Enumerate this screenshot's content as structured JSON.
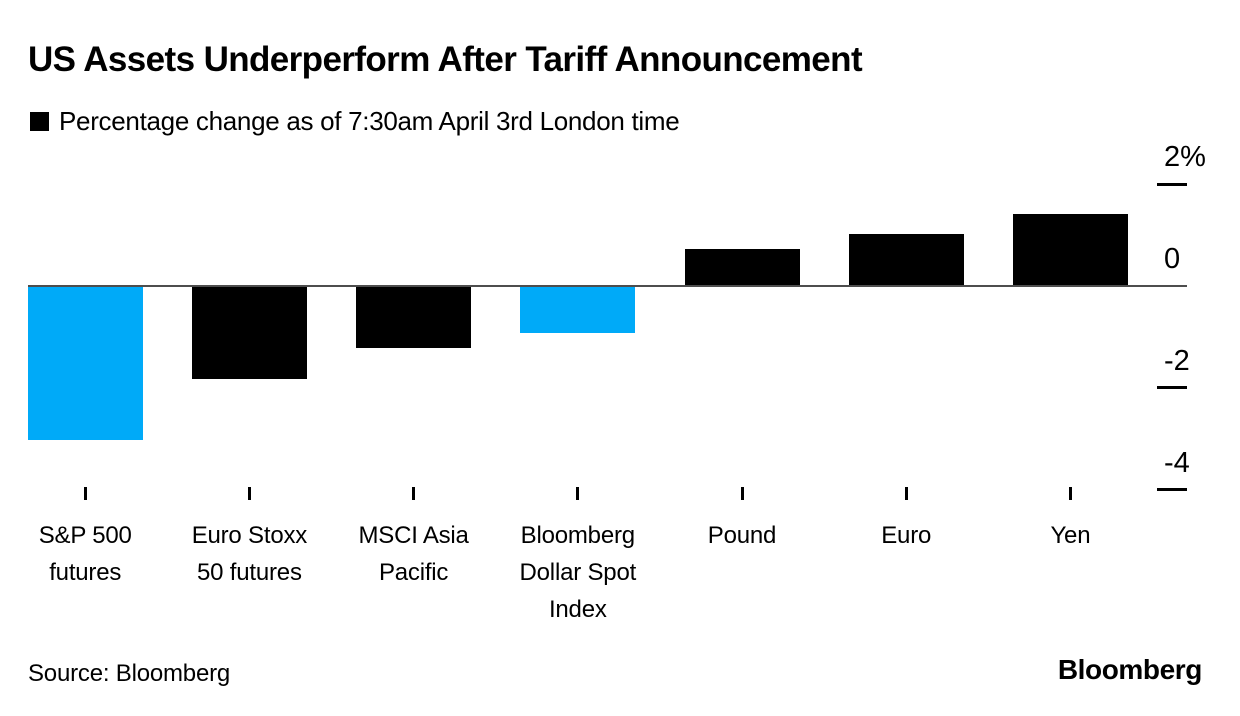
{
  "title": "US Assets Underperform After Tariff Announcement",
  "legend": {
    "label": "Percentage change as of 7:30am April 3rd London time",
    "swatch_color": "#000000"
  },
  "source_note": "Source: Bloomberg",
  "brand_logo": "Bloomberg",
  "colors": {
    "bar_black": "#000000",
    "bar_blue": "#00aaf8",
    "axis_line": "#4d4d4d",
    "text": "#000000",
    "background": "#ffffff"
  },
  "chart_data": {
    "type": "bar",
    "title": "US Assets Underperform After Tariff Announcement",
    "subtitle_legend": "Percentage change as of 7:30am April 3rd London time",
    "categories": [
      "S&P 500 futures",
      "Euro Stoxx 50 futures",
      "MSCI Asia Pacific",
      "Bloomberg Dollar Spot Index",
      "Pound",
      "Euro",
      "Yen"
    ],
    "values": [
      -3.0,
      -1.8,
      -1.2,
      -0.9,
      0.7,
      1.0,
      1.4
    ],
    "unit": "%",
    "bar_colors": [
      "#00aaf8",
      "#000000",
      "#000000",
      "#00aaf8",
      "#000000",
      "#000000",
      "#000000"
    ],
    "highlighted_categories": [
      "S&P 500 futures",
      "Bloomberg Dollar Spot Index"
    ],
    "xlabel": "",
    "ylabel": "Percentage change",
    "ylim": [
      -4.6,
      2.4
    ],
    "yticks": [
      {
        "label": "2%",
        "value": 2
      },
      {
        "label": "0",
        "value": 0
      },
      {
        "label": "-2",
        "value": -2
      },
      {
        "label": "-4",
        "value": -4
      }
    ],
    "axis_labels_side": "right",
    "grid": false,
    "legend_position": "top-left",
    "category_lines": [
      [
        "S&P 500",
        "futures"
      ],
      [
        "Euro Stoxx",
        "50 futures"
      ],
      [
        "MSCI Asia",
        "Pacific"
      ],
      [
        "Bloomberg",
        "Dollar Spot",
        "Index"
      ],
      [
        "Pound"
      ],
      [
        "Euro"
      ],
      [
        "Yen"
      ]
    ]
  }
}
